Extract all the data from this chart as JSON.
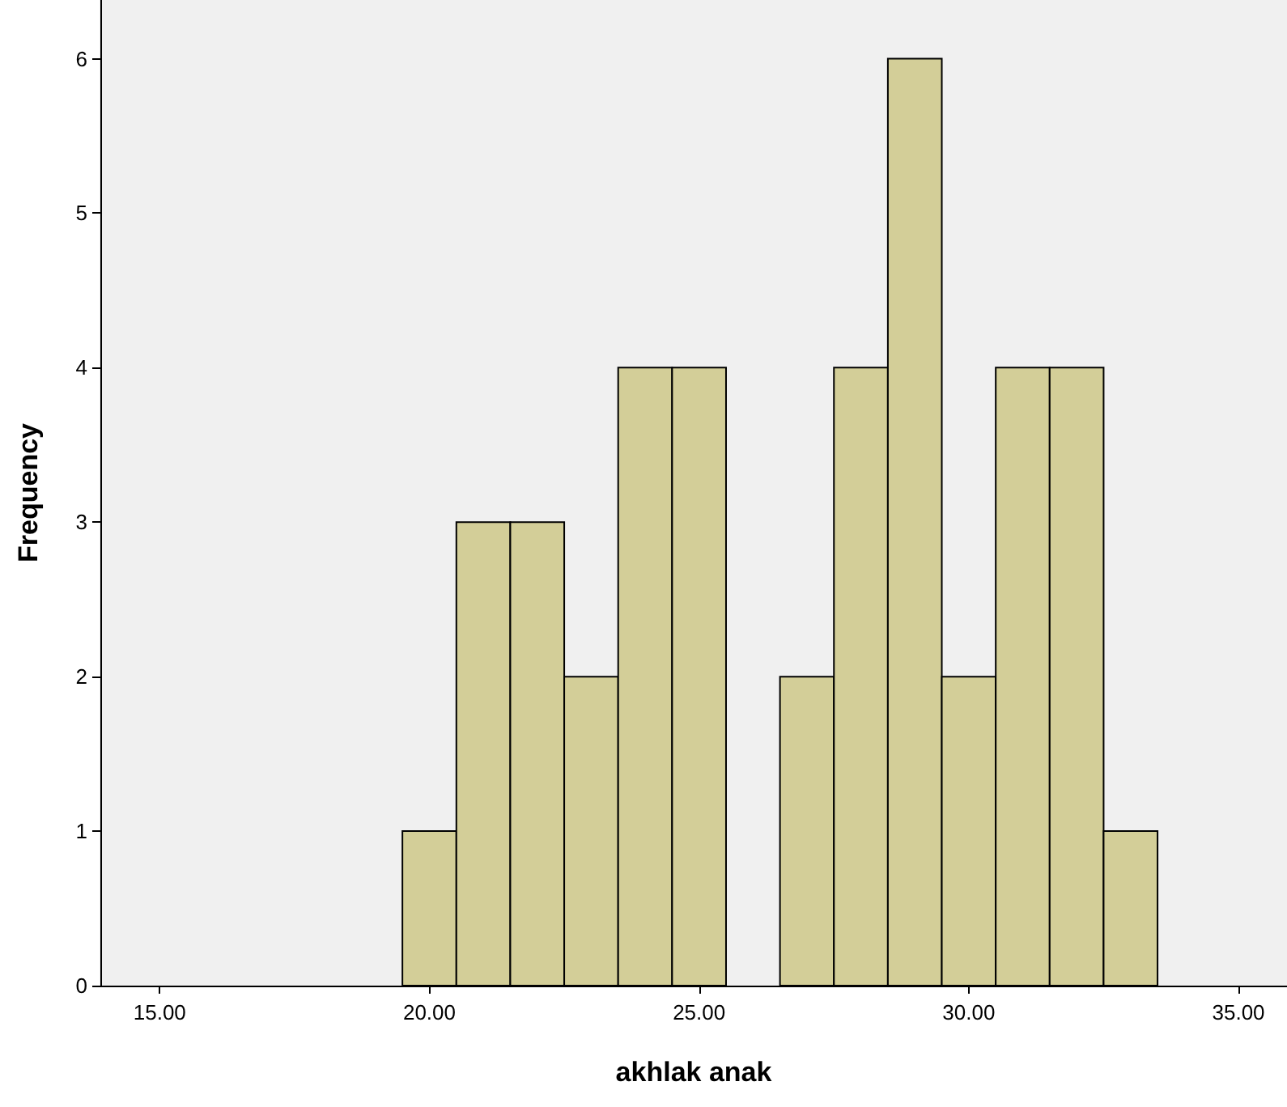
{
  "chart_data": {
    "type": "histogram",
    "xlabel": "akhlak anak",
    "ylabel": "Frequency",
    "bins": [
      19.5,
      20.5,
      21.5,
      22.5,
      23.5,
      24.5,
      25.5,
      26.5,
      27.5,
      28.5,
      29.5,
      30.5,
      31.5,
      32.5,
      33.5
    ],
    "values": [
      1,
      3,
      3,
      2,
      4,
      4,
      0,
      2,
      4,
      6,
      2,
      4,
      4,
      1
    ],
    "color": "#d3ce98",
    "xlim": [
      13.9,
      35.9
    ],
    "xticks": [
      {
        "value": 15,
        "label": "15.00"
      },
      {
        "value": 20,
        "label": "20.00"
      },
      {
        "value": 25,
        "label": "25.00"
      },
      {
        "value": 30,
        "label": "30.00"
      },
      {
        "value": 35,
        "label": "35.00"
      }
    ],
    "ylim": [
      0,
      6.38
    ],
    "yticks": [
      0,
      1,
      2,
      3,
      4,
      5,
      6
    ],
    "grid": false
  }
}
